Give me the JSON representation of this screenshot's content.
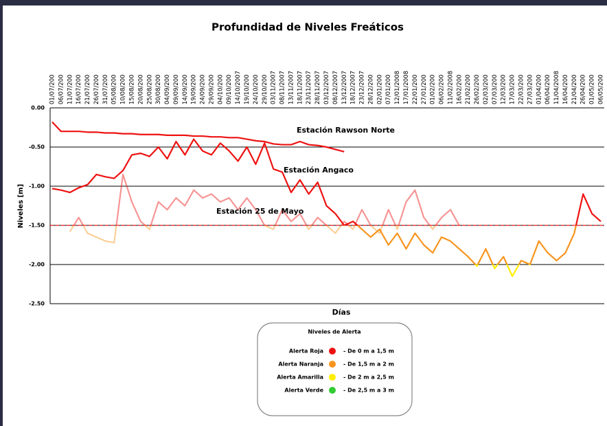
{
  "chart_data": {
    "type": "line",
    "title": "Profundidad de Niveles Freáticos",
    "x_label": "Días",
    "y_label": "Niveles [m]",
    "categories": [
      "01/07/200",
      "06/07/200",
      "11/07/200",
      "16/07/200",
      "21/07/200",
      "26/07/200",
      "31/07/200",
      "05/08/200",
      "10/08/200",
      "15/08/200",
      "20/08/200",
      "25/08/200",
      "30/08/200",
      "04/09/200",
      "09/09/200",
      "14/09/200",
      "19/09/200",
      "24/09/200",
      "29/09/200",
      "04/10/200",
      "09/10/200",
      "14/10/2007",
      "19/10/200",
      "24/10/200",
      "29/10/200",
      "03/11/2007",
      "08/11/2007",
      "13/11/2007",
      "18/11/2007",
      "23/11/2007",
      "28/11/2007",
      "03/12/2007",
      "08/12/2007",
      "13/12/2007",
      "18/12/2007",
      "23/12/2007",
      "28/12/200",
      "02/01/200",
      "07/01/200",
      "12/01/2008",
      "17/01/2008",
      "22/01/200",
      "27/01/200",
      "01/02/200",
      "06/02/200",
      "11/02/2008",
      "16/02/200",
      "21/02/200",
      "26/02/200",
      "02/03/200",
      "07/03/200",
      "12/03/200",
      "17/03/200",
      "22/03/200",
      "27/03/200",
      "01/04/200",
      "06/04/200",
      "11/04/2008",
      "16/04/200",
      "21/04/200",
      "26/04/200",
      "01/05/200",
      "06/05/200"
    ],
    "series": [
      {
        "name": "Estación Rawson Norte",
        "opacity": 1,
        "values": [
          -0.18,
          -0.3,
          -0.3,
          -0.3,
          -0.31,
          -0.31,
          -0.32,
          -0.32,
          -0.33,
          -0.33,
          -0.34,
          -0.34,
          -0.34,
          -0.35,
          -0.35,
          -0.35,
          -0.36,
          -0.36,
          -0.37,
          -0.37,
          -0.38,
          -0.38,
          -0.4,
          -0.42,
          -0.43,
          -0.46,
          -0.47,
          -0.47,
          -0.43,
          -0.47,
          -0.48,
          -0.5,
          -0.53,
          -0.56,
          null,
          null,
          null,
          null,
          null,
          null,
          null,
          null,
          null,
          null,
          null,
          null,
          null,
          null,
          null,
          null,
          null,
          null,
          null,
          null,
          null,
          null,
          null,
          null,
          null,
          null,
          null,
          null,
          null
        ]
      },
      {
        "name": "Estación Angaco",
        "opacity": 1,
        "values": [
          -1.03,
          -1.05,
          -1.08,
          -1.02,
          -0.98,
          -0.85,
          -0.88,
          -0.9,
          -0.8,
          -0.6,
          -0.58,
          -0.62,
          -0.5,
          -0.65,
          -0.43,
          -0.6,
          -0.4,
          -0.55,
          -0.6,
          -0.45,
          -0.55,
          -0.68,
          -0.5,
          -0.72,
          -0.45,
          -0.78,
          -0.82,
          -1.08,
          -0.92,
          -1.1,
          -0.95,
          -1.25,
          -1.35,
          -1.5,
          -1.45,
          -1.55,
          -1.65,
          -1.55,
          -1.75,
          -1.6,
          -1.8,
          -1.6,
          -1.75,
          -1.85,
          -1.65,
          -1.7,
          -1.8,
          -1.9,
          -2.02,
          -1.8,
          -2.05,
          -1.9,
          -2.15,
          -1.95,
          -2.0,
          -1.7,
          -1.85,
          -1.95,
          -1.85,
          -1.6,
          -1.1,
          -1.35,
          -1.45
        ]
      },
      {
        "name": "Estación 25 de Mayo",
        "opacity": 0.45,
        "values": [
          null,
          null,
          -1.58,
          -1.4,
          -1.6,
          -1.65,
          -1.7,
          -1.72,
          -0.85,
          -1.2,
          -1.45,
          -1.55,
          -1.2,
          -1.3,
          -1.15,
          -1.25,
          -1.05,
          -1.15,
          -1.1,
          -1.2,
          -1.15,
          -1.3,
          -1.15,
          -1.3,
          -1.5,
          -1.55,
          -1.3,
          -1.45,
          -1.35,
          -1.55,
          -1.4,
          -1.5,
          -1.6,
          -1.45,
          -1.55,
          -1.3,
          -1.5,
          -1.6,
          -1.3,
          -1.55,
          -1.2,
          -1.05,
          -1.4,
          -1.55,
          -1.4,
          -1.3,
          -1.5,
          null,
          null,
          null,
          null,
          null,
          null,
          null,
          null,
          null,
          null,
          null,
          null,
          null,
          null,
          null,
          null
        ]
      }
    ],
    "ylim": [
      -2.5,
      0
    ],
    "yticks": [
      {
        "value": 0,
        "label": "0.00"
      },
      {
        "value": -0.5,
        "label": "-0.50"
      },
      {
        "value": -1,
        "label": "-1.00"
      },
      {
        "value": -1.5,
        "label": "-1.50"
      },
      {
        "value": -2,
        "label": "-2.00"
      },
      {
        "value": -2.5,
        "label": "-2.50"
      }
    ],
    "grid": true,
    "legend_title": "Niveles de Alerta",
    "alert_levels": [
      {
        "name": "Alerta Roja",
        "color": "#ee1111",
        "from": 0,
        "to": 1.5,
        "label": "- De 0 m  a 1,5 m"
      },
      {
        "name": "Alerta Naranja",
        "color": "#f7941d",
        "from": 1.5,
        "to": 2,
        "label": "- De 1,5 m  a 2 m"
      },
      {
        "name": "Alerta Amarilla",
        "color": "#ffee00",
        "from": 2,
        "to": 2.5,
        "label": "- De 2 m  a 2,5 m"
      },
      {
        "name": "Alerta Verde",
        "color": "#33cc33",
        "from": 2.5,
        "to": 3,
        "label": "- De 2,5 m  a 3 m"
      }
    ]
  }
}
